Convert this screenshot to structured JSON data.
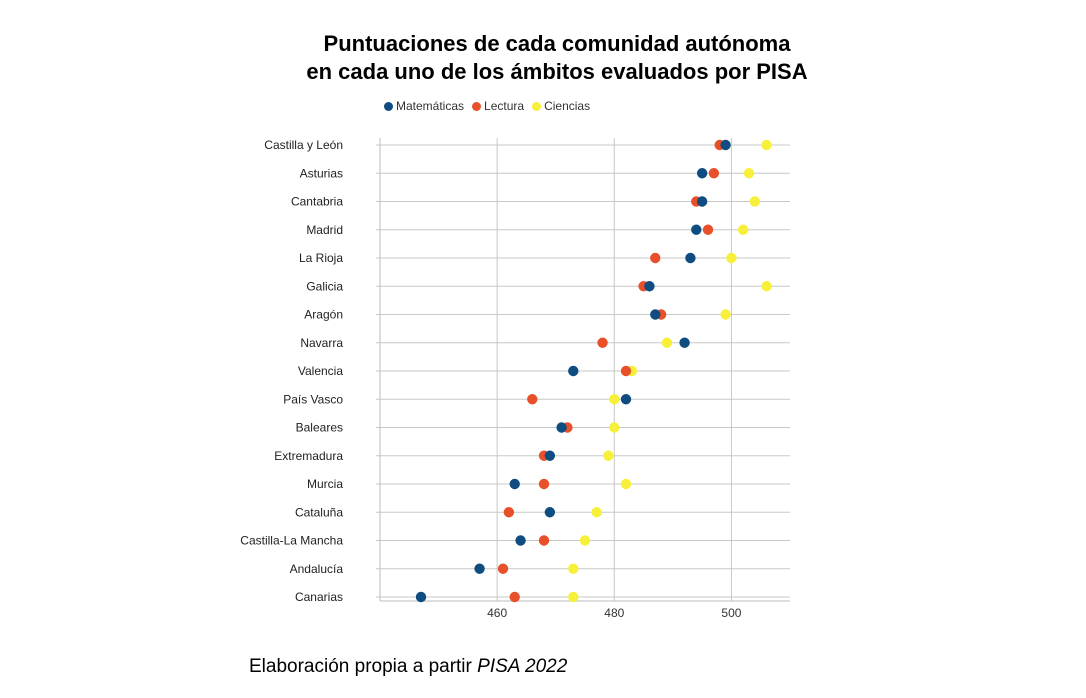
{
  "chart_data": {
    "type": "scatter",
    "title_lines": [
      "Puntuaciones de cada comunidad autónoma",
      "en cada uno de los ámbitos evaluados por PISA"
    ],
    "categories": [
      "Castilla y León",
      "Asturias",
      "Cantabria",
      "Madrid",
      "La Rioja",
      "Galicia",
      "Aragón",
      "Navarra",
      "Valencia",
      "País Vasco",
      "Baleares",
      "Extremadura",
      "Murcia",
      "Cataluña",
      "Castilla-La Mancha",
      "Andalucía",
      "Canarias"
    ],
    "series": [
      {
        "name": "Matemáticas",
        "color": "#0f4c81",
        "values": [
          499,
          495,
          495,
          494,
          493,
          486,
          487,
          492,
          473,
          482,
          471,
          469,
          463,
          469,
          464,
          457,
          447
        ]
      },
      {
        "name": "Lectura",
        "color": "#e8502a",
        "values": [
          498,
          497,
          494,
          496,
          487,
          485,
          488,
          478,
          482,
          466,
          472,
          468,
          468,
          462,
          468,
          461,
          463
        ]
      },
      {
        "name": "Ciencias",
        "color": "#f7f03a",
        "values": [
          506,
          503,
          504,
          502,
          500,
          506,
          499,
          489,
          483,
          480,
          480,
          479,
          482,
          477,
          475,
          473,
          473
        ]
      }
    ],
    "xlim": [
      440,
      510
    ],
    "xticks": [
      460,
      480,
      500
    ],
    "grid": true,
    "legend_position": "top"
  },
  "caption": {
    "text": "Elaboración propia a partir ",
    "italic": "PISA 2022"
  }
}
